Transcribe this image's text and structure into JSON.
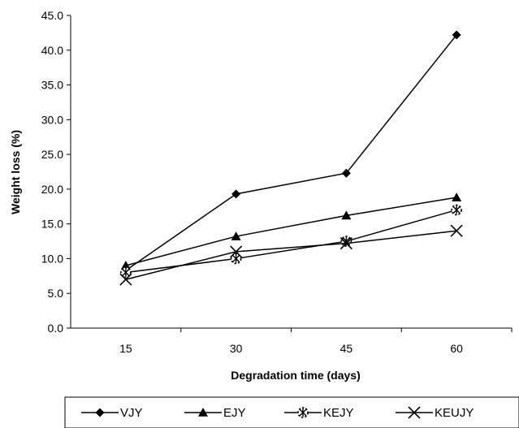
{
  "chart_data": {
    "type": "line",
    "title": "",
    "xlabel": "Degradation time (days)",
    "ylabel": "Weight loss (%)",
    "categories": [
      "15",
      "30",
      "45",
      "60"
    ],
    "ylim": [
      0,
      45
    ],
    "yticks": [
      "0.0",
      "5.0",
      "10.0",
      "15.0",
      "20.0",
      "25.0",
      "30.0",
      "35.0",
      "40.0",
      "45.0"
    ],
    "grid": false,
    "legend_position": "bottom",
    "series": [
      {
        "name": "VJY",
        "marker": "diamond",
        "values": [
          8.3,
          19.3,
          22.3,
          42.2
        ]
      },
      {
        "name": "EJY",
        "marker": "triangle",
        "values": [
          9.0,
          13.2,
          16.2,
          18.8
        ]
      },
      {
        "name": "KEJY",
        "marker": "asterisk",
        "values": [
          8.0,
          10.0,
          12.5,
          17.0
        ]
      },
      {
        "name": "KEUJY",
        "marker": "x",
        "values": [
          7.0,
          11.0,
          12.2,
          14.0
        ]
      }
    ]
  }
}
